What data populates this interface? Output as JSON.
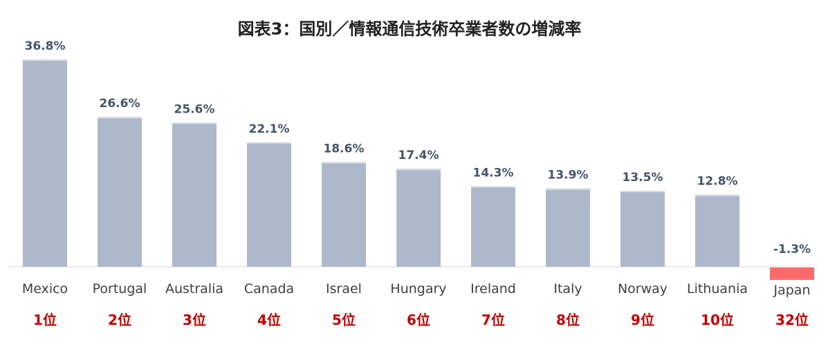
{
  "chart_data": {
    "type": "bar",
    "title": "図表3：国別／情報通信技術卒業者数の増減率",
    "categories": [
      "Mexico",
      "Portugal",
      "Australia",
      "Canada",
      "Israel",
      "Hungary",
      "Ireland",
      "Italy",
      "Norway",
      "Lithuania",
      "Japan"
    ],
    "values": [
      36.8,
      26.6,
      25.6,
      22.1,
      18.6,
      17.4,
      14.3,
      13.9,
      13.5,
      12.8,
      -1.3
    ],
    "value_labels": [
      "36.8%",
      "26.6%",
      "25.6%",
      "22.1%",
      "18.6%",
      "17.4%",
      "14.3%",
      "13.9%",
      "13.5%",
      "12.8%",
      "-1.3%"
    ],
    "ranks": [
      "1位",
      "2位",
      "3位",
      "4位",
      "5位",
      "6位",
      "7位",
      "8位",
      "9位",
      "10位",
      "32位"
    ],
    "unit": "%",
    "ylim": [
      -1.3,
      36.8
    ],
    "grid": false,
    "legend": "none",
    "colors": {
      "positive_bar": "#adb9ca",
      "negative_bar": "#ff6b6b",
      "value_label": "#44546a",
      "rank_label": "#c00000",
      "axis_line": "#d9d9d9"
    }
  }
}
